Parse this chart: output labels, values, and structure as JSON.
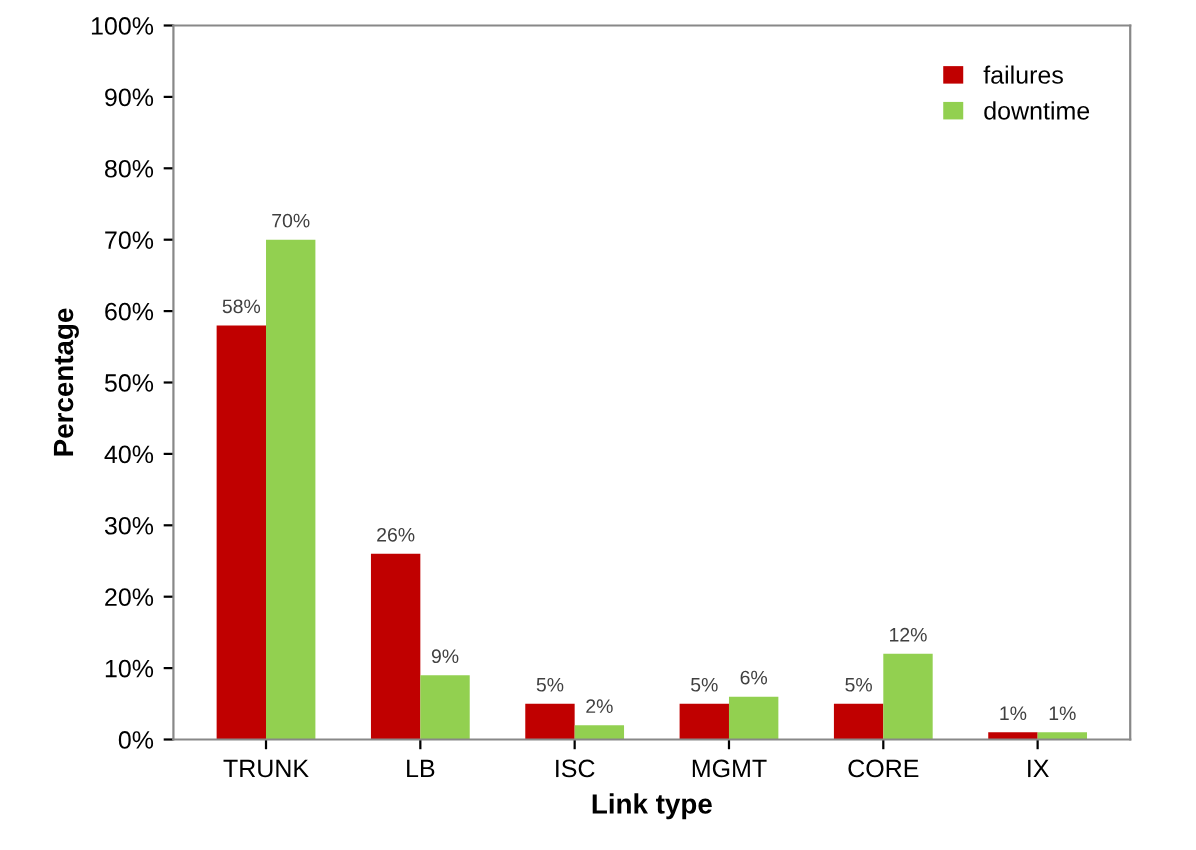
{
  "chart_data": {
    "type": "bar",
    "xlabel": "Link type",
    "ylabel": "Percentage",
    "categories": [
      "TRUNK",
      "LB",
      "ISC",
      "MGMT",
      "CORE",
      "IX"
    ],
    "series": [
      {
        "name": "failures",
        "color": "#c00000",
        "values": [
          58,
          26,
          5,
          5,
          5,
          1
        ],
        "value_labels": [
          "58%",
          "26%",
          "5%",
          "5%",
          "5%",
          "1%"
        ]
      },
      {
        "name": "downtime",
        "color": "#92d050",
        "values": [
          70,
          9,
          2,
          6,
          12,
          1
        ],
        "value_labels": [
          "70%",
          "9%",
          "2%",
          "6%",
          "12%",
          "1%"
        ]
      }
    ],
    "ylim": [
      0,
      100
    ],
    "yticks": [
      {
        "value": 0,
        "label": "0%"
      },
      {
        "value": 10,
        "label": "10%"
      },
      {
        "value": 20,
        "label": "20%"
      },
      {
        "value": 30,
        "label": "30%"
      },
      {
        "value": 40,
        "label": "40%"
      },
      {
        "value": 50,
        "label": "50%"
      },
      {
        "value": 60,
        "label": "60%"
      },
      {
        "value": 70,
        "label": "70%"
      },
      {
        "value": 80,
        "label": "80%"
      },
      {
        "value": 90,
        "label": "90%"
      },
      {
        "value": 100,
        "label": "100%"
      }
    ],
    "grid": false,
    "legend": "top right"
  }
}
